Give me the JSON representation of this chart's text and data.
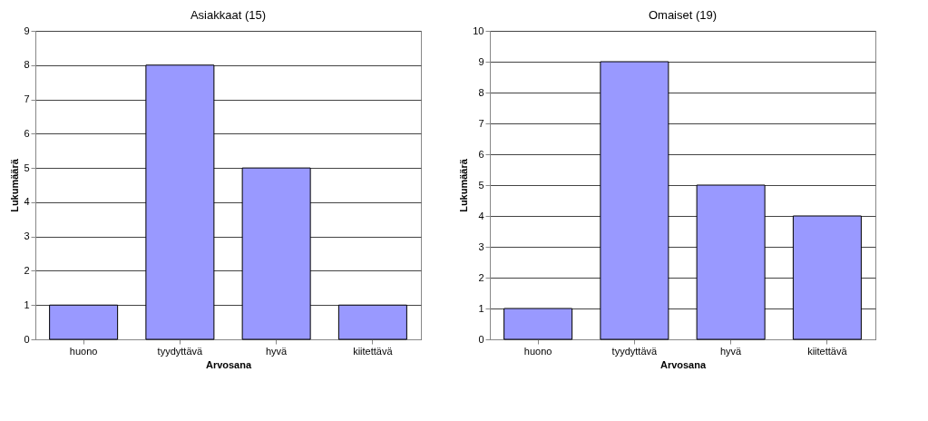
{
  "chart_data": [
    {
      "type": "bar",
      "title": "Asiakkaat (15)",
      "xlabel": "Arvosana",
      "ylabel": "Lukumäärä",
      "categories": [
        "huono",
        "tyydyttävä",
        "hyvä",
        "kiitettävä"
      ],
      "values": [
        1,
        8,
        5,
        1
      ],
      "color": "#9999ff",
      "ylim": [
        0,
        9
      ],
      "yticks": [
        0,
        1,
        2,
        3,
        4,
        5,
        6,
        7,
        8,
        9
      ],
      "grid": "y"
    },
    {
      "type": "bar",
      "title": "Omaiset (19)",
      "xlabel": "Arvosana",
      "ylabel": "Lukumäärä",
      "categories": [
        "huono",
        "tyydyttävä",
        "hyvä",
        "kiitettävä"
      ],
      "values": [
        1,
        9,
        5,
        4
      ],
      "color": "#9999ff",
      "ylim": [
        0,
        10
      ],
      "yticks": [
        0,
        1,
        2,
        3,
        4,
        5,
        6,
        7,
        8,
        9,
        10
      ],
      "grid": "y"
    }
  ]
}
